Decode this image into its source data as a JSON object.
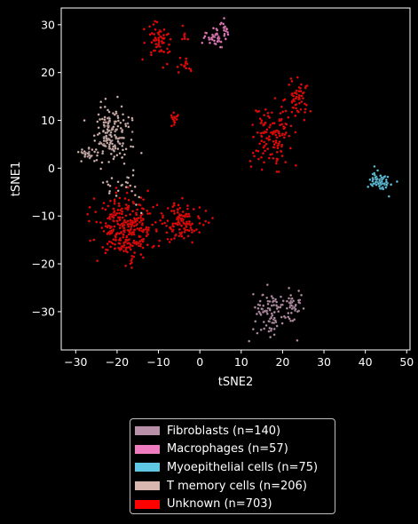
{
  "chart_data": {
    "type": "scatter",
    "xlabel": "tSNE2",
    "ylabel": "tSNE1",
    "xlim": [
      -33.5,
      50.8
    ],
    "ylim": [
      -38.0,
      33.5
    ],
    "xticks": [
      -30,
      -20,
      -10,
      0,
      10,
      20,
      30,
      40,
      50
    ],
    "yticks": [
      -30,
      -20,
      -10,
      0,
      10,
      20,
      30
    ],
    "grid": false,
    "legend_position": "below",
    "background": "#000000",
    "series": [
      {
        "name": "Fibroblasts (n=140)",
        "color": "#b891a8",
        "count": 140,
        "clusters": [
          {
            "cx": 17.5,
            "cy": -30.5,
            "sx": 2.6,
            "sy": 2.4,
            "n": 100
          },
          {
            "cx": 22.5,
            "cy": -28.5,
            "sx": 0.9,
            "sy": 1.4,
            "n": 25
          },
          {
            "cx": -21.0,
            "cy": 6.0,
            "sx": 2.5,
            "sy": 3.0,
            "n": 15
          }
        ]
      },
      {
        "name": "Macrophages (n=57)",
        "color": "#f07cc0",
        "count": 57,
        "clusters": [
          {
            "cx": 3.5,
            "cy": 27.5,
            "sx": 1.6,
            "sy": 1.0,
            "n": 45
          },
          {
            "cx": 6.0,
            "cy": 29.5,
            "sx": 0.6,
            "sy": 0.6,
            "n": 12
          }
        ]
      },
      {
        "name": "Myoepithelial cells (n=75)",
        "color": "#5ec8e5",
        "count": 75,
        "clusters": [
          {
            "cx": 43.5,
            "cy": -2.7,
            "sx": 1.3,
            "sy": 1.1,
            "n": 75
          }
        ]
      },
      {
        "name": "T memory cells (n=206)",
        "color": "#d7b7b0",
        "count": 206,
        "clusters": [
          {
            "cx": -21.0,
            "cy": 7.0,
            "sx": 2.2,
            "sy": 2.8,
            "n": 150
          },
          {
            "cx": -26.5,
            "cy": 3.0,
            "sx": 1.3,
            "sy": 0.8,
            "n": 30
          },
          {
            "cx": -18.5,
            "cy": -4.0,
            "sx": 2.5,
            "sy": 2.5,
            "n": 26
          }
        ]
      },
      {
        "name": "Unknown (n=703)",
        "color": "#ff0000",
        "count": 703,
        "clusters": [
          {
            "cx": -18.0,
            "cy": -12.5,
            "sx": 3.5,
            "sy": 3.2,
            "n": 300
          },
          {
            "cx": -4.5,
            "cy": -11.5,
            "sx": 2.6,
            "sy": 2.0,
            "n": 120
          },
          {
            "cx": 17.5,
            "cy": 7.0,
            "sx": 2.4,
            "sy": 3.2,
            "n": 130
          },
          {
            "cx": 23.5,
            "cy": 14.5,
            "sx": 1.3,
            "sy": 2.3,
            "n": 55
          },
          {
            "cx": -10.0,
            "cy": 26.5,
            "sx": 1.7,
            "sy": 1.9,
            "n": 60
          },
          {
            "cx": -3.5,
            "cy": 21.5,
            "sx": 0.9,
            "sy": 0.6,
            "n": 15
          },
          {
            "cx": -3.5,
            "cy": 28.0,
            "sx": 0.5,
            "sy": 0.8,
            "n": 8
          },
          {
            "cx": -6.0,
            "cy": 10.5,
            "sx": 0.6,
            "sy": 0.8,
            "n": 15
          }
        ]
      }
    ]
  }
}
